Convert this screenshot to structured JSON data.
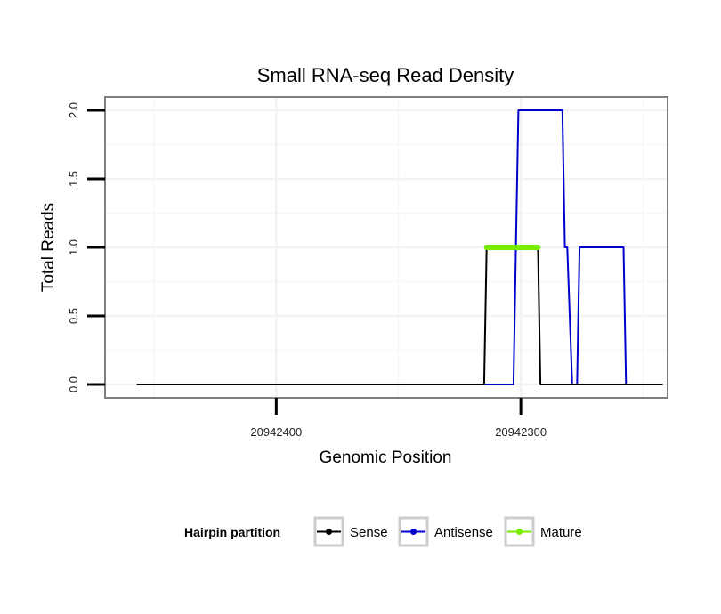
{
  "chart_data": {
    "type": "line",
    "title": "Small RNA-seq Read Density",
    "xlabel": "Genomic Position",
    "ylabel": "Total Reads",
    "x_reversed": true,
    "xlim": [
      20942470,
      20942240
    ],
    "ylim": [
      0,
      2
    ],
    "x_ticks": [
      20942400,
      20942300
    ],
    "x_tick_labels": [
      "20942400",
      "20942300"
    ],
    "y_ticks": [
      0,
      0.5,
      1,
      1.5,
      2
    ],
    "y_tick_labels": [
      "0.0",
      "0.5",
      "1.0",
      "1.5",
      "2.0"
    ],
    "grid": true,
    "legend": {
      "title": "Hairpin partition",
      "placement": "bottom",
      "entries": [
        {
          "name": "Sense",
          "color": "#000000"
        },
        {
          "name": "Antisense",
          "color": "#0000cc"
        },
        {
          "name": "Mature",
          "color": "#77ee00"
        }
      ]
    },
    "series": [
      {
        "name": "Antisense",
        "color": "#0000cc",
        "x": [
          20942457,
          20942345,
          20942344,
          20942303,
          20942302,
          20942301,
          20942283,
          20942282,
          20942281,
          20942279,
          20942277,
          20942276,
          20942258,
          20942257,
          20942242
        ],
        "y": [
          0,
          0,
          0,
          0,
          1,
          2,
          2,
          1,
          1,
          0,
          0,
          1,
          1,
          0,
          0
        ]
      },
      {
        "name": "Sense",
        "color": "#000000",
        "x": [
          20942457,
          20942315,
          20942314,
          20942293,
          20942292,
          20942242
        ],
        "y": [
          0,
          0,
          1,
          1,
          0,
          0
        ]
      },
      {
        "name": "Mature",
        "color": "#77ee00",
        "x": [
          20942314,
          20942293
        ],
        "y": [
          1,
          1
        ]
      }
    ]
  }
}
